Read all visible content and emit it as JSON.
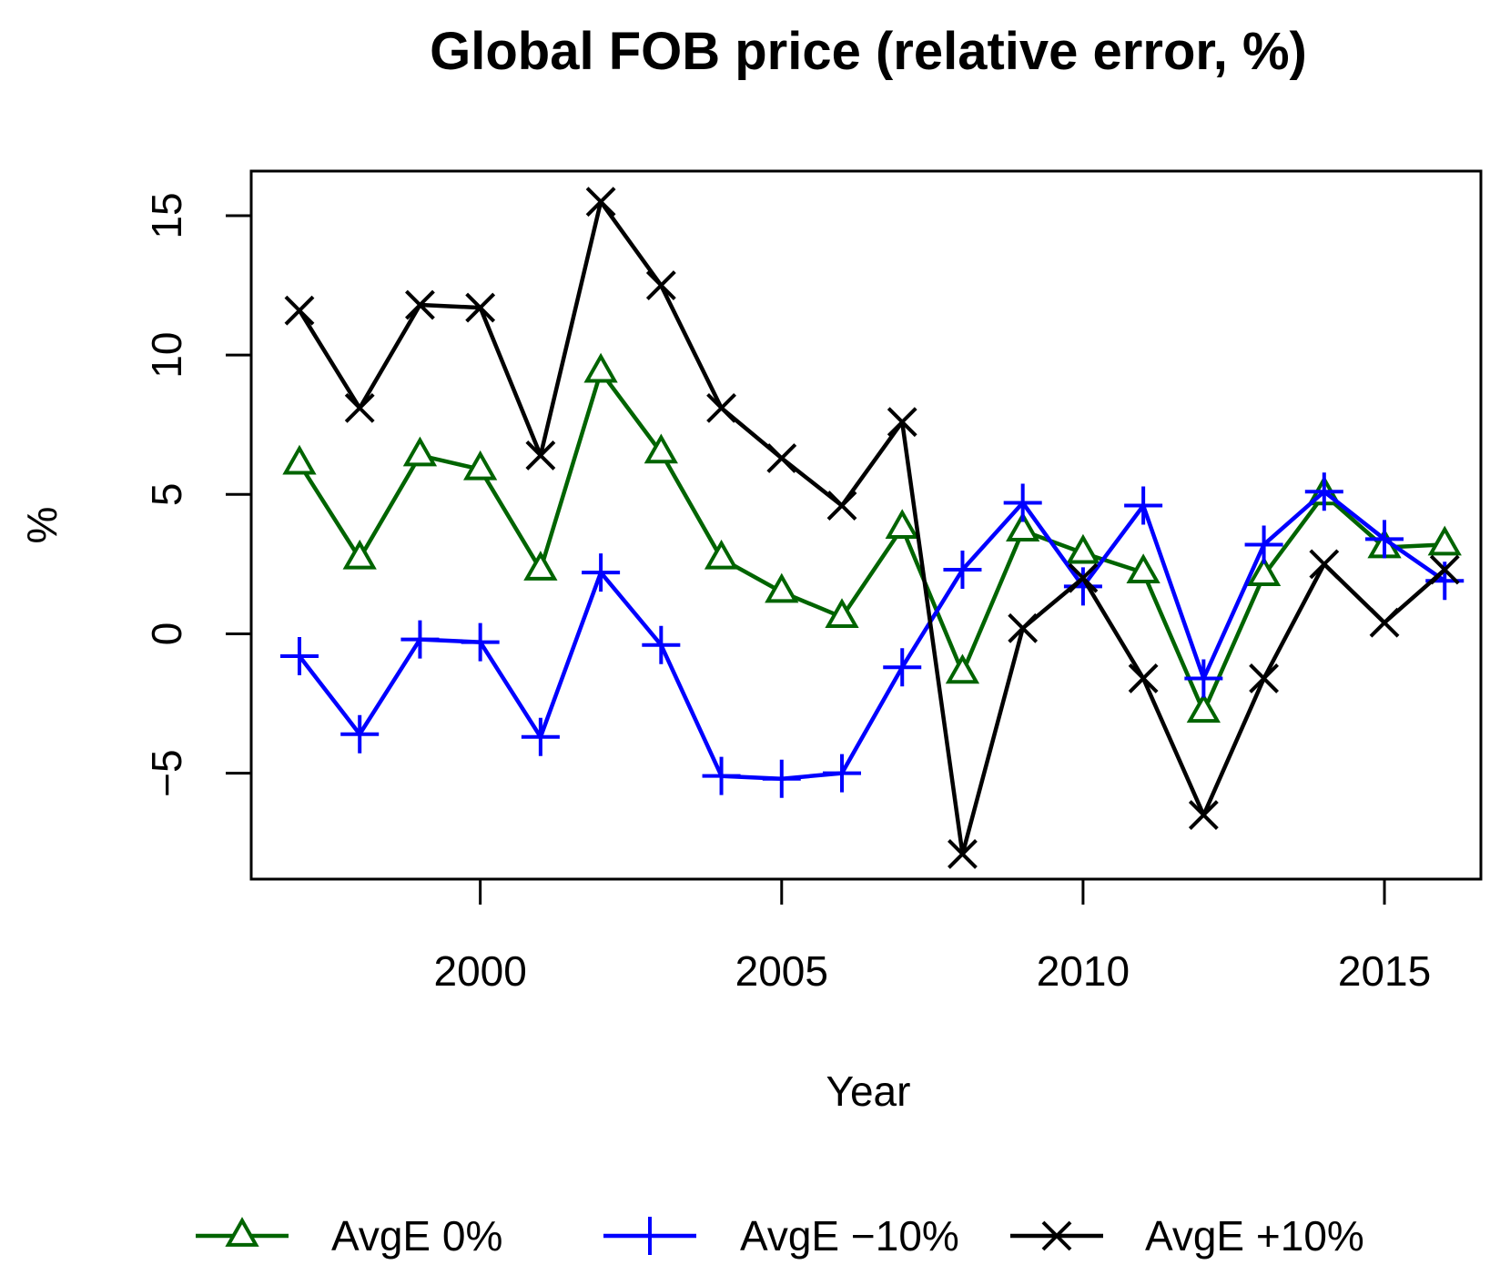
{
  "chart_data": {
    "type": "line",
    "title": "Global FOB price (relative error, %)",
    "xlabel": "Year",
    "ylabel": "%",
    "xlim": [
      1996.2,
      2016.6
    ],
    "ylim": [
      -8.8,
      16.6
    ],
    "x_ticks": [
      2000,
      2005,
      2010,
      2015
    ],
    "y_ticks": [
      -5,
      0,
      5,
      10,
      15
    ],
    "x_tick_labels": [
      "2000",
      "2005",
      "2010",
      "2015"
    ],
    "y_tick_labels": [
      "−5",
      "0",
      "5",
      "10",
      "15"
    ],
    "grid": false,
    "legend_position": "bottom",
    "x": [
      1997,
      1998,
      1999,
      2000,
      2001,
      2002,
      2003,
      2004,
      2005,
      2006,
      2007,
      2008,
      2009,
      2010,
      2011,
      2012,
      2013,
      2014,
      2015,
      2016
    ],
    "series": [
      {
        "name": "AvgE 0%",
        "legend_label": "AvgE 0%",
        "color": "#006400",
        "marker": "triangle",
        "values": [
          6.1,
          2.7,
          6.4,
          5.9,
          2.3,
          9.4,
          6.5,
          2.7,
          1.5,
          0.6,
          3.8,
          -1.4,
          3.7,
          2.9,
          2.2,
          -2.8,
          2.1,
          5.0,
          3.1,
          3.2
        ]
      },
      {
        "name": "AvgE -10%",
        "legend_label": "AvgE −10%",
        "color": "#0000FF",
        "marker": "plus",
        "values": [
          -0.8,
          -3.6,
          -0.2,
          -0.3,
          -3.7,
          2.2,
          -0.4,
          -5.1,
          -5.2,
          -5.0,
          -1.2,
          2.3,
          4.7,
          1.7,
          4.6,
          -1.6,
          3.2,
          5.1,
          3.4,
          1.9
        ]
      },
      {
        "name": "AvgE +10%",
        "legend_label": "AvgE +10%",
        "color": "#000000",
        "marker": "x",
        "values": [
          11.6,
          8.1,
          11.8,
          11.7,
          6.4,
          15.5,
          12.5,
          8.1,
          6.3,
          4.6,
          7.6,
          -7.9,
          0.2,
          2.0,
          -1.6,
          -6.5,
          -1.6,
          2.5,
          0.4,
          2.3
        ]
      }
    ]
  }
}
